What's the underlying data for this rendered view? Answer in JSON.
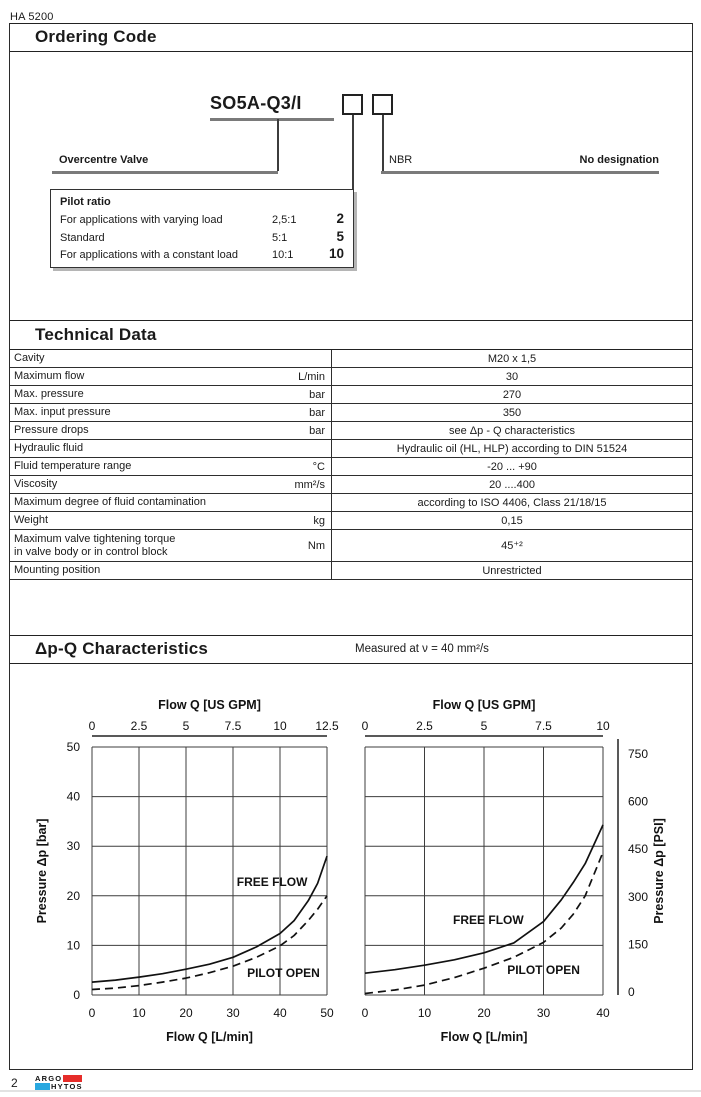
{
  "page": {
    "doc_code": "HA 5200",
    "page_number": "2",
    "logo": {
      "line1": "ARGO",
      "line2": "HYTOS",
      "red": "#e62d2a",
      "cyan": "#29a8e0"
    }
  },
  "sections": {
    "ordering_title": "Ordering Code",
    "technical_title": "Technical Data",
    "dpq_title": "Δp-Q Characteristics",
    "dpq_note": "Measured at  ν = 40 mm²/s"
  },
  "ordering": {
    "code": "SO5A-Q3/I",
    "overcentre_label": "Overcentre Valve",
    "seal_label": "NBR",
    "seal_value": "No designation",
    "pilot": {
      "title": "Pilot ratio",
      "rows": [
        {
          "desc": "For applications with varying load",
          "ratio": "2,5:1",
          "code": "2"
        },
        {
          "desc": "Standard",
          "ratio": "5:1",
          "code": "5"
        },
        {
          "desc": "For applications with a constant load",
          "ratio": "10:1",
          "code": "10"
        }
      ]
    }
  },
  "technical_table": {
    "rows": [
      {
        "label": "Cavity",
        "unit": "",
        "value": "M20 x 1,5"
      },
      {
        "label": "Maximum flow",
        "unit": "L/min",
        "value": "30"
      },
      {
        "label": "Max. pressure",
        "unit": "bar",
        "value": "270"
      },
      {
        "label": "Max. input pressure",
        "unit": "bar",
        "value": "350"
      },
      {
        "label": "Pressure drops",
        "unit": "bar",
        "value": "see Δp - Q characteristics"
      },
      {
        "label": "Hydraulic fluid",
        "unit": "",
        "value": "Hydraulic oil (HL, HLP) according to DIN 51524"
      },
      {
        "label": "Fluid temperature range",
        "unit": "°C",
        "value": "-20 ... +90"
      },
      {
        "label": "Viscosity",
        "unit": "mm²/s",
        "value": "20 ....400"
      },
      {
        "label": "Maximum degree of fluid contamination",
        "unit": "",
        "value": "according to ISO 4406, Class 21/18/15"
      },
      {
        "label": "Weight",
        "unit": "kg",
        "value": "0,15"
      },
      {
        "label": "Maximum valve tightening torque",
        "label2": "in valve body or in control block",
        "unit": "Nm",
        "value": "45⁺²",
        "tall": true
      },
      {
        "label": "Mounting position",
        "unit": "",
        "value": "Unrestricted"
      }
    ]
  },
  "chart_data": [
    {
      "type": "line",
      "top_axis_label": "Flow Q [US GPM]",
      "top_ticks": [
        "0",
        "2.5",
        "5",
        "7.5",
        "10",
        "12.5"
      ],
      "xlabel": "Flow Q [L/min]",
      "x_ticks": [
        0,
        10,
        20,
        30,
        40,
        50
      ],
      "xlim": [
        0,
        50
      ],
      "ylabel": "Pressure Δp [bar]",
      "y_ticks": [
        50,
        40,
        30,
        20,
        10,
        0
      ],
      "ylim": [
        0,
        50
      ],
      "y_axis_side": "left",
      "grid": true,
      "series": [
        {
          "name": "FREE FLOW",
          "line": "solid",
          "points": [
            [
              0,
              2.6
            ],
            [
              5,
              3.0
            ],
            [
              10,
              3.6
            ],
            [
              15,
              4.3
            ],
            [
              20,
              5.2
            ],
            [
              25,
              6.2
            ],
            [
              30,
              7.6
            ],
            [
              35,
              9.7
            ],
            [
              40,
              12.4
            ],
            [
              43,
              15.0
            ],
            [
              46,
              19.0
            ],
            [
              48,
              22.5
            ],
            [
              50,
              28.0
            ]
          ]
        },
        {
          "name": "PILOT OPEN",
          "line": "dashed",
          "points": [
            [
              0,
              1.1
            ],
            [
              5,
              1.4
            ],
            [
              10,
              1.9
            ],
            [
              15,
              2.6
            ],
            [
              20,
              3.4
            ],
            [
              25,
              4.5
            ],
            [
              30,
              5.8
            ],
            [
              35,
              7.6
            ],
            [
              40,
              9.9
            ],
            [
              43,
              12.0
            ],
            [
              46,
              15.0
            ],
            [
              48,
              17.3
            ],
            [
              50,
              20.0
            ]
          ]
        }
      ],
      "annotations": [
        {
          "text": "FREE FLOW",
          "x": 30.8,
          "y": 22.8
        },
        {
          "text": "PILOT OPEN",
          "x": 33.0,
          "y": 4.4
        }
      ]
    },
    {
      "type": "line",
      "top_axis_label": "Flow Q [US GPM]",
      "top_ticks": [
        "0",
        "2.5",
        "5",
        "7.5",
        "10"
      ],
      "xlabel": "Flow Q [L/min]",
      "x_ticks": [
        0,
        10,
        20,
        30,
        40
      ],
      "xlim": [
        0,
        40
      ],
      "ylabel_right": "Pressure Δp [PSI]",
      "right_ticks": [
        750,
        600,
        450,
        300,
        150,
        0
      ],
      "ylim_bar": [
        0,
        50
      ],
      "y_axis_side": "right",
      "grid": true,
      "series": [
        {
          "name": "FREE FLOW",
          "line": "solid",
          "points": [
            [
              0,
              4.4
            ],
            [
              5,
              5.1
            ],
            [
              10,
              6.0
            ],
            [
              15,
              7.1
            ],
            [
              20,
              8.5
            ],
            [
              25,
              10.5
            ],
            [
              30,
              14.8
            ],
            [
              33,
              19.2
            ],
            [
              35,
              22.7
            ],
            [
              37,
              26.5
            ],
            [
              40,
              34.3
            ]
          ]
        },
        {
          "name": "PILOT OPEN",
          "line": "dashed",
          "points": [
            [
              0,
              0.3
            ],
            [
              5,
              1.0
            ],
            [
              10,
              2.0
            ],
            [
              15,
              3.5
            ],
            [
              20,
              5.4
            ],
            [
              25,
              7.6
            ],
            [
              30,
              10.6
            ],
            [
              33,
              13.5
            ],
            [
              35,
              16.3
            ],
            [
              37,
              20.0
            ],
            [
              40,
              28.8
            ]
          ]
        }
      ],
      "annotations": [
        {
          "text": "FREE FLOW",
          "x": 14.8,
          "y": 15.1
        },
        {
          "text": "PILOT OPEN",
          "x": 23.9,
          "y": 5.0
        }
      ]
    }
  ]
}
